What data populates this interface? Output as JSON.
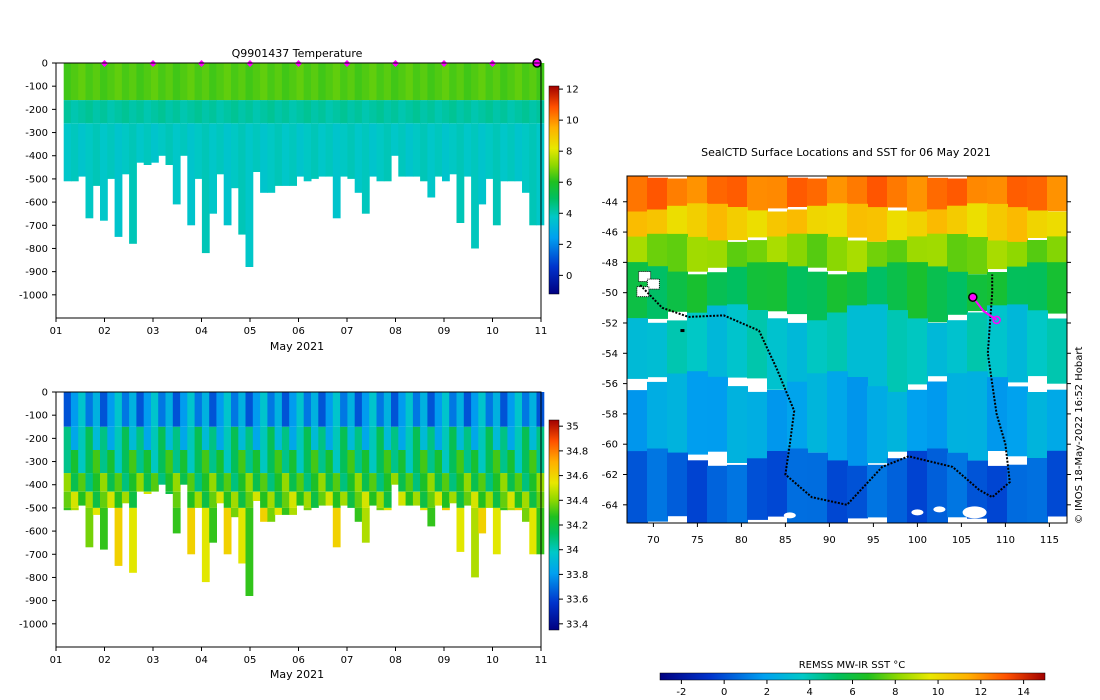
{
  "chart_data": [
    {
      "type": "heatmap",
      "title": "Q9901437  Temperature",
      "xlabel": "May 2021",
      "ylabel": "",
      "x_ticks": [
        "01",
        "02",
        "03",
        "04",
        "05",
        "06",
        "07",
        "08",
        "09",
        "10",
        "11"
      ],
      "x_range": [
        1,
        11
      ],
      "y_ticks": [
        0,
        -100,
        -200,
        -300,
        -400,
        -500,
        -600,
        -700,
        -800,
        -900,
        -1000
      ],
      "y_range": [
        -1100,
        0
      ],
      "colorbar": {
        "min": -1.2,
        "max": 12.2,
        "ticks": [
          0,
          2,
          4,
          6,
          8,
          10,
          12
        ]
      },
      "profile_days": [
        1.15,
        1.3,
        1.45,
        1.6,
        1.75,
        1.9,
        2.05,
        2.2,
        2.35,
        2.5,
        2.65,
        2.8,
        2.95,
        3.1,
        3.25,
        3.4,
        3.55,
        3.7,
        3.85,
        4.0,
        4.15,
        4.3,
        4.45,
        4.6,
        4.75,
        4.9,
        5.05,
        5.2,
        5.35,
        5.5,
        5.65,
        5.8,
        5.95,
        6.1,
        6.25,
        6.4,
        6.55,
        6.7,
        6.85,
        7.0,
        7.15,
        7.3,
        7.45,
        7.6,
        7.75,
        7.9,
        8.05,
        8.2,
        8.35,
        8.5,
        8.65,
        8.8,
        8.95,
        9.1,
        9.25,
        9.4,
        9.55,
        9.7,
        9.85,
        10.0,
        10.15,
        10.3,
        10.45,
        10.6,
        10.75,
        10.9
      ],
      "max_depth": [
        510,
        510,
        490,
        670,
        530,
        680,
        500,
        750,
        480,
        780,
        430,
        440,
        430,
        400,
        440,
        610,
        400,
        700,
        500,
        820,
        650,
        480,
        700,
        540,
        740,
        880,
        470,
        560,
        560,
        530,
        530,
        530,
        490,
        510,
        500,
        490,
        490,
        670,
        490,
        500,
        560,
        650,
        490,
        510,
        510,
        400,
        490,
        490,
        490,
        510,
        580,
        490,
        510,
        480,
        690,
        490,
        800,
        610,
        500,
        700,
        510,
        510,
        510,
        560,
        700,
        700
      ],
      "layers": [
        {
          "depth_range": [
            0,
            160
          ],
          "value": 6.5
        },
        {
          "depth_range": [
            160,
            260
          ],
          "value": 4.2
        },
        {
          "depth_range": [
            260,
            1000
          ],
          "value": 3.8
        }
      ],
      "surface_markers_days": [
        2,
        3,
        4,
        5,
        6,
        7,
        8,
        9,
        10
      ],
      "last_profile_day": 11
    },
    {
      "type": "heatmap",
      "title": "",
      "xlabel": "May 2021",
      "ylabel": "",
      "x_ticks": [
        "01",
        "02",
        "03",
        "04",
        "05",
        "06",
        "07",
        "08",
        "09",
        "10",
        "11"
      ],
      "x_range": [
        1,
        11
      ],
      "y_ticks": [
        0,
        -100,
        -200,
        -300,
        -400,
        -500,
        -600,
        -700,
        -800,
        -900,
        -1000
      ],
      "y_range": [
        -1100,
        0
      ],
      "colorbar": {
        "min": 33.35,
        "max": 35.05,
        "ticks": [
          "33.4",
          "33.6",
          "33.8",
          "34",
          "34.2",
          "34.4",
          "34.6",
          "34.8",
          "35"
        ]
      },
      "layers": [
        {
          "depth_range": [
            0,
            150
          ],
          "value": 33.8
        },
        {
          "depth_range": [
            150,
            250
          ],
          "value": 34.0
        },
        {
          "depth_range": [
            250,
            350
          ],
          "value": 34.15
        },
        {
          "depth_range": [
            350,
            430
          ],
          "value": 34.25
        },
        {
          "depth_range": [
            430,
            500
          ],
          "value": 34.35
        },
        {
          "depth_range": [
            500,
            1000
          ],
          "value": 34.45
        }
      ]
    },
    {
      "type": "heatmap",
      "title": "SealCTD Surface Locations and SST for 06 May 2021",
      "xlabel": "",
      "ylabel": "",
      "x_ticks": [
        70,
        75,
        80,
        85,
        90,
        95,
        100,
        105,
        110,
        115
      ],
      "x_range": [
        67,
        117
      ],
      "y_ticks": [
        -44,
        -46,
        -48,
        -50,
        -52,
        -54,
        -56,
        -58,
        -60,
        -62,
        -64
      ],
      "y_range": [
        -65.2,
        -42.3
      ],
      "colorbar": {
        "label": "REMSS MW-IR SST °C",
        "min": -3,
        "max": 15,
        "ticks": [
          -2,
          0,
          2,
          4,
          6,
          8,
          10,
          12,
          14
        ]
      },
      "track_lonlat": [
        [
          68.5,
          -49.5
        ],
        [
          71,
          -51
        ],
        [
          74,
          -51.6
        ],
        [
          78,
          -51.5
        ],
        [
          82,
          -52.5
        ],
        [
          84,
          -55
        ],
        [
          86,
          -57.8
        ],
        [
          85.5,
          -60
        ],
        [
          85,
          -62
        ],
        [
          88,
          -63.5
        ],
        [
          92,
          -64
        ],
        [
          96,
          -61.5
        ],
        [
          99,
          -60.8
        ],
        [
          104,
          -61.5
        ],
        [
          107,
          -63
        ],
        [
          108.5,
          -63.5
        ],
        [
          110.5,
          -62.5
        ],
        [
          110,
          -60
        ],
        [
          109,
          -58
        ],
        [
          108,
          -54
        ],
        [
          108.5,
          -50
        ],
        [
          108.5,
          -48.8
        ]
      ],
      "recent_track_lonlat": [
        [
          106.3,
          -50.3
        ],
        [
          107.5,
          -51.2
        ],
        [
          109,
          -51.8
        ]
      ],
      "isolated_point_lonlat": [
        73.3,
        -52.5
      ],
      "highlight_lonlat": [
        106.3,
        -50.3
      ],
      "land_patches_lonlat": [
        [
          69,
          -49
        ],
        [
          70,
          -49.5
        ],
        [
          68.8,
          -50
        ]
      ],
      "ice_patches_lonlat": [
        [
          85.5,
          -64.7
        ],
        [
          100,
          -64.5
        ],
        [
          102.5,
          -64.3
        ],
        [
          106.5,
          -64.5
        ]
      ],
      "sst_zones": [
        {
          "lat_range": [
            -44.5,
            -42.3
          ],
          "value": 12.5
        },
        {
          "lat_range": [
            -46.5,
            -44.5
          ],
          "value": 10.5
        },
        {
          "lat_range": [
            -48.5,
            -46.5
          ],
          "value": 8.0
        },
        {
          "lat_range": [
            -51.5,
            -48.5
          ],
          "value": 5.8
        },
        {
          "lat_range": [
            -56,
            -51.5
          ],
          "value": 3.5
        },
        {
          "lat_range": [
            -61,
            -56
          ],
          "value": 2.2
        },
        {
          "lat_range": [
            -65.2,
            -61
          ],
          "value": 0.3
        }
      ],
      "credit": "© IMOS 18-May-2022 16:52 Hobart"
    }
  ]
}
